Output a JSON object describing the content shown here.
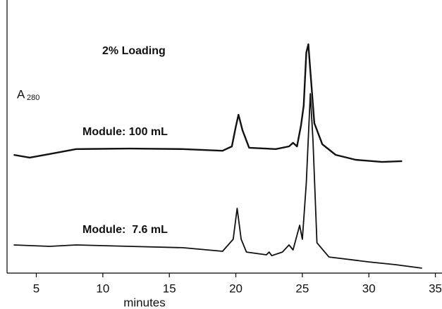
{
  "chart_data": {
    "type": "line",
    "title": "2% Loading",
    "y_label": "A",
    "y_label_sub": "280",
    "x_label": "minutes",
    "xlim": [
      2.8,
      35.5
    ],
    "ylim": [
      0,
      100
    ],
    "xticks": [
      5,
      10,
      15,
      20,
      25,
      30,
      35
    ],
    "series": [
      {
        "name": "Module: 100 mL",
        "color": "#111111",
        "x": [
          3.3,
          4.5,
          6,
          8,
          12,
          16,
          19,
          19.7,
          20.0,
          20.2,
          20.5,
          21,
          23,
          24.0,
          24.3,
          24.6,
          24.9,
          25.1,
          25.3,
          25.45,
          25.6,
          25.9,
          26.5,
          27.5,
          29,
          31,
          32.5
        ],
        "values": [
          43.3,
          42.3,
          43.6,
          45.4,
          45.6,
          45.4,
          44.8,
          46.4,
          53.6,
          58.0,
          52.3,
          45.9,
          45.4,
          46.4,
          47.7,
          46.4,
          54.1,
          61.3,
          80.7,
          83.8,
          74.2,
          54.9,
          47.2,
          43.3,
          41.5,
          40.7,
          41.0
        ]
      },
      {
        "name": "Module:  7.6 mL",
        "color": "#111111",
        "x": [
          3.3,
          6,
          8,
          12,
          16,
          19,
          19.8,
          20.1,
          20.4,
          20.8,
          22.3,
          22.5,
          22.7,
          23.5,
          24,
          24.3,
          24.8,
          25.0,
          25.3,
          25.6,
          25.8,
          26.1,
          27,
          30,
          32,
          34
        ],
        "values": [
          10.3,
          9.8,
          10.3,
          9.8,
          9.3,
          8.0,
          12.4,
          23.7,
          12.4,
          7.7,
          6.7,
          7.7,
          6.4,
          7.7,
          10.3,
          8.5,
          17.5,
          12.4,
          33.0,
          65.7,
          48.5,
          11.1,
          5.9,
          4.1,
          3.1,
          1.8
        ]
      }
    ]
  }
}
